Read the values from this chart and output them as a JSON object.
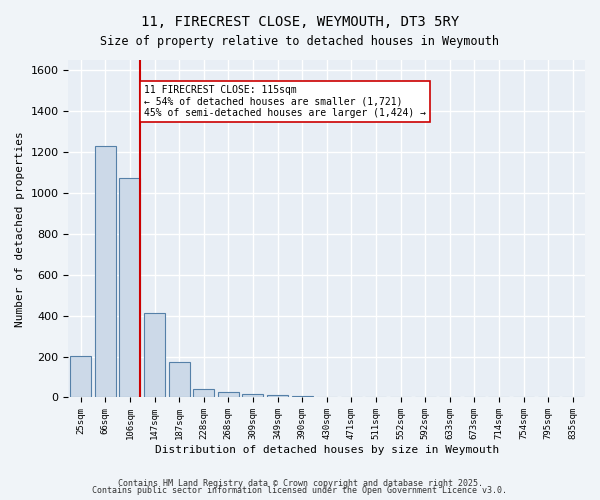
{
  "title1": "11, FIRECREST CLOSE, WEYMOUTH, DT3 5RY",
  "title2": "Size of property relative to detached houses in Weymouth",
  "xlabel": "Distribution of detached houses by size in Weymouth",
  "ylabel": "Number of detached properties",
  "bar_labels": [
    "25sqm",
    "66sqm",
    "106sqm",
    "147sqm",
    "187sqm",
    "228sqm",
    "268sqm",
    "309sqm",
    "349sqm",
    "390sqm",
    "430sqm",
    "471sqm",
    "511sqm",
    "552sqm",
    "592sqm",
    "633sqm",
    "673sqm",
    "714sqm",
    "754sqm",
    "795sqm",
    "835sqm"
  ],
  "bar_values": [
    205,
    1230,
    1075,
    415,
    175,
    40,
    25,
    15,
    10,
    5,
    3,
    2,
    1,
    1,
    0,
    0,
    0,
    0,
    0,
    0,
    0
  ],
  "bar_color": "#ccd9e8",
  "bar_edge_color": "#5580a8",
  "red_line_x": 2.41,
  "annotation_text": "11 FIRECREST CLOSE: 115sqm\n← 54% of detached houses are smaller (1,721)\n45% of semi-detached houses are larger (1,424) →",
  "annotation_box_color": "#ffffff",
  "annotation_box_edge": "#cc0000",
  "red_line_color": "#cc0000",
  "ylim": [
    0,
    1650
  ],
  "yticks": [
    0,
    200,
    400,
    600,
    800,
    1000,
    1200,
    1400,
    1600
  ],
  "bg_color": "#e8eef5",
  "grid_color": "#ffffff",
  "footer1": "Contains HM Land Registry data © Crown copyright and database right 2025.",
  "footer2": "Contains public sector information licensed under the Open Government Licence v3.0."
}
